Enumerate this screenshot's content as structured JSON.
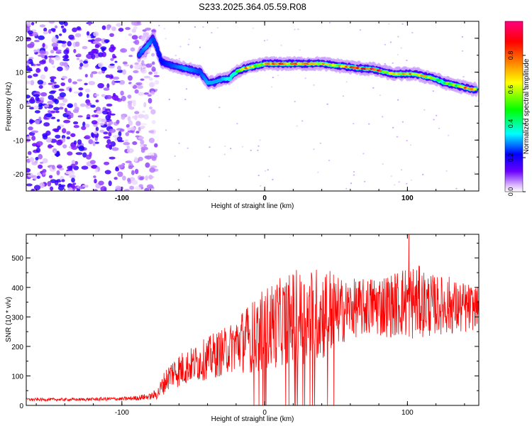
{
  "figure_title": "S233.2025.364.05.59.R08",
  "chart_data": [
    {
      "type": "heatmap",
      "title": "S233.2025.364.05.59.R08",
      "xlabel": "Height of straight line (km)",
      "ylabel": "Frequency (Hz)",
      "xlim": [
        -167,
        150
      ],
      "ylim": [
        -25,
        25
      ],
      "x_ticks": [
        -100,
        0,
        100
      ],
      "y_ticks": [
        -20,
        -10,
        0,
        10,
        20
      ],
      "colorbar": {
        "label": "Normalized spectral amplitude",
        "range": [
          0,
          1
        ],
        "ticks": [
          0.0,
          0.2,
          0.4,
          0.6,
          0.8
        ],
        "colors": [
          "#ffffff",
          "#d9b3ff",
          "#6a00ff",
          "#0000ff",
          "#00ffff",
          "#00ff00",
          "#ffff00",
          "#ff8000",
          "#ff0000",
          "#ff0080"
        ]
      },
      "noise_region": {
        "x_range": [
          -167,
          -85
        ],
        "amplitude_range": [
          0.02,
          0.2
        ]
      },
      "ridge": {
        "x": [
          -88,
          -82,
          -78,
          -72,
          -65,
          -55,
          -45,
          -40,
          -35,
          -30,
          -25,
          -20,
          -15,
          -10,
          -5,
          0,
          10,
          20,
          30,
          40,
          50,
          60,
          70,
          75,
          80,
          85,
          90,
          95,
          100,
          105,
          110,
          115,
          120,
          125,
          130,
          135,
          140,
          145,
          148
        ],
        "frequency": [
          15,
          18,
          20,
          13,
          12,
          11,
          10,
          7,
          7,
          8,
          8,
          10,
          11,
          11.5,
          12,
          12.5,
          12.5,
          12.5,
          12.5,
          12.5,
          12,
          11.5,
          11,
          11,
          10.5,
          10,
          9.5,
          9.5,
          9.5,
          9.5,
          9,
          8.5,
          8,
          7,
          6.5,
          6,
          5.5,
          5,
          5
        ],
        "amplitude": [
          0.25,
          0.3,
          0.25,
          0.22,
          0.25,
          0.3,
          0.25,
          0.3,
          0.3,
          0.3,
          0.35,
          0.4,
          0.75,
          0.8,
          0.6,
          0.7,
          0.78,
          0.8,
          0.78,
          0.7,
          0.7,
          0.8,
          0.85,
          0.95,
          0.9,
          0.6,
          0.7,
          0.75,
          0.7,
          0.8,
          0.7,
          0.6,
          0.55,
          0.5,
          0.55,
          0.6,
          0.8,
          0.9,
          0.7
        ]
      }
    },
    {
      "type": "line",
      "xlabel": "Height of straight line (km)",
      "ylabel": "SNR (10 * v/v)",
      "xlim": [
        -167,
        150
      ],
      "ylim": [
        0,
        580
      ],
      "x_ticks": [
        -100,
        0,
        100
      ],
      "y_ticks": [
        0,
        100,
        200,
        300,
        400,
        500
      ],
      "series": [
        {
          "name": "SNR",
          "color": "#ff0000",
          "x": [
            -167,
            -150,
            -130,
            -110,
            -100,
            -90,
            -85,
            -80,
            -75,
            -70,
            -65,
            -60,
            -55,
            -50,
            -45,
            -40,
            -35,
            -30,
            -25,
            -20,
            -15,
            -10,
            -5,
            0,
            5,
            10,
            15,
            20,
            25,
            30,
            35,
            40,
            45,
            50,
            55,
            60,
            65,
            70,
            75,
            80,
            85,
            90,
            95,
            100,
            105,
            110,
            115,
            120,
            125,
            130,
            135,
            140,
            145,
            150
          ],
          "mean": [
            20,
            20,
            20,
            22,
            22,
            25,
            28,
            30,
            40,
            80,
            110,
            120,
            130,
            140,
            150,
            160,
            170,
            180,
            190,
            210,
            220,
            230,
            240,
            260,
            270,
            280,
            290,
            300,
            300,
            300,
            310,
            310,
            320,
            320,
            320,
            330,
            330,
            330,
            340,
            340,
            340,
            340,
            350,
            350,
            350,
            350,
            340,
            340,
            340,
            340,
            330,
            330,
            330,
            340
          ],
          "spread": [
            5,
            5,
            5,
            6,
            6,
            8,
            10,
            10,
            20,
            40,
            50,
            60,
            60,
            60,
            70,
            70,
            80,
            80,
            80,
            100,
            110,
            120,
            130,
            140,
            150,
            150,
            150,
            160,
            160,
            160,
            160,
            160,
            160,
            120,
            110,
            100,
            100,
            100,
            100,
            110,
            110,
            110,
            120,
            130,
            130,
            120,
            110,
            100,
            100,
            100,
            90,
            90,
            80,
            60
          ],
          "peak": {
            "x": 101,
            "y": 580
          },
          "dropouts_x_range": [
            -10,
            52
          ]
        }
      ]
    }
  ]
}
